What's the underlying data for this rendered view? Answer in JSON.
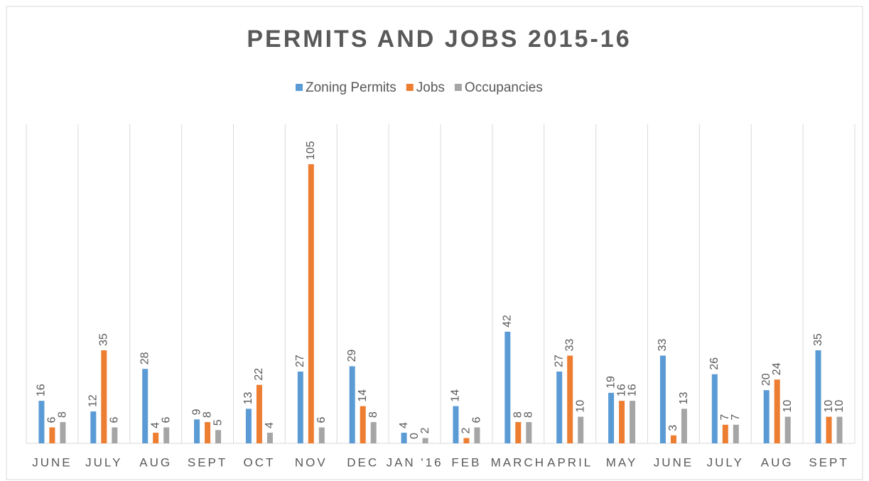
{
  "chart_data": {
    "type": "bar",
    "title": "PERMITS AND JOBS 2015-16",
    "categories": [
      "JUNE",
      "JULY",
      "AUG",
      "SEPT",
      "OCT",
      "NOV",
      "DEC",
      "JAN '16",
      "FEB",
      "MARCH",
      "APRIL",
      "MAY",
      "JUNE",
      "JULY",
      "AUG",
      "SEPT"
    ],
    "series": [
      {
        "name": "Zoning Permits",
        "color": "#5b9bd5",
        "values": [
          16,
          12,
          28,
          9,
          13,
          27,
          29,
          4,
          14,
          42,
          27,
          19,
          33,
          26,
          20,
          35
        ]
      },
      {
        "name": "Jobs",
        "color": "#ed7d31",
        "values": [
          6,
          35,
          4,
          8,
          22,
          105,
          14,
          0,
          2,
          8,
          33,
          16,
          3,
          7,
          24,
          10
        ]
      },
      {
        "name": "Occupancies",
        "color": "#a5a5a5",
        "values": [
          8,
          6,
          6,
          5,
          4,
          6,
          8,
          2,
          6,
          8,
          10,
          16,
          13,
          7,
          10,
          10
        ]
      }
    ],
    "ylim": [
      0,
      120
    ],
    "legend": "top"
  }
}
